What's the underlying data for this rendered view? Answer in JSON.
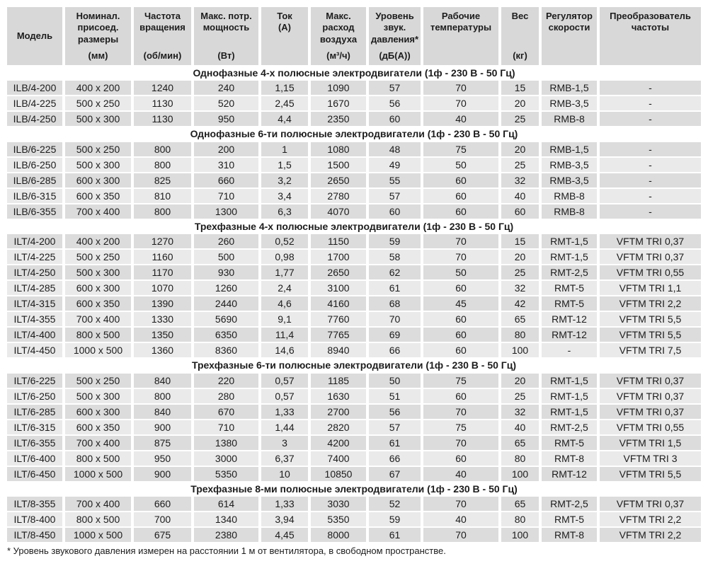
{
  "colors": {
    "header_bg": "#d8d8d8",
    "row_dark": "#dcdcdc",
    "row_light": "#eaeaea",
    "text": "#1c1c1c"
  },
  "table": {
    "columns": [
      {
        "key": "model",
        "title": "Модель",
        "unit": "",
        "layout": "center"
      },
      {
        "key": "dimensions",
        "title": "Номинал. присоед. размеры",
        "unit": "(мм)",
        "layout": "spread"
      },
      {
        "key": "rpm",
        "title": "Частота вращения",
        "unit": "(об/мин)",
        "layout": "spread"
      },
      {
        "key": "power",
        "title": "Макс. потр. мощность",
        "unit": "(Вт)",
        "layout": "spread"
      },
      {
        "key": "current",
        "title": "Ток",
        "unit": "(А)",
        "layout": "top"
      },
      {
        "key": "airflow",
        "title": "Макс. расход воздуха",
        "unit": "(м³/ч)",
        "layout": "spread"
      },
      {
        "key": "noise",
        "title": "Уровень звук. давления*",
        "unit": "(дБ(А))",
        "layout": "spread"
      },
      {
        "key": "temperature",
        "title": "Рабочие температуры",
        "unit": "",
        "layout": "top"
      },
      {
        "key": "weight",
        "title": "Вес",
        "unit": "(кг)",
        "layout": "spread"
      },
      {
        "key": "regulator",
        "title": "Регулятор скорости",
        "unit": "",
        "layout": "top"
      },
      {
        "key": "converter",
        "title": "Преобразователь частоты",
        "unit": "",
        "layout": "top"
      }
    ],
    "sections": [
      {
        "title": "Однофазные 4-х полюсные электродвигатели (1ф - 230 В - 50 Гц)",
        "rows": [
          [
            "ILB/4-200",
            "400 x 200",
            "1240",
            "240",
            "1,15",
            "1090",
            "57",
            "70",
            "15",
            "RMB-1,5",
            "-"
          ],
          [
            "ILB/4-225",
            "500 x 250",
            "1130",
            "520",
            "2,45",
            "1670",
            "56",
            "70",
            "20",
            "RMB-3,5",
            "-"
          ],
          [
            "ILB/4-250",
            "500 x 300",
            "1130",
            "950",
            "4,4",
            "2350",
            "60",
            "40",
            "25",
            "RMB-8",
            "-"
          ]
        ]
      },
      {
        "title": "Однофазные 6-ти полюсные электродвигатели (1ф - 230 В - 50 Гц)",
        "rows": [
          [
            "ILB/6-225",
            "500 x 250",
            "800",
            "200",
            "1",
            "1080",
            "48",
            "75",
            "20",
            "RMB-1,5",
            "-"
          ],
          [
            "ILB/6-250",
            "500 x 300",
            "800",
            "310",
            "1,5",
            "1500",
            "49",
            "50",
            "25",
            "RMB-3,5",
            "-"
          ],
          [
            "ILB/6-285",
            "600 x 300",
            "825",
            "660",
            "3,2",
            "2650",
            "55",
            "60",
            "32",
            "RMB-3,5",
            "-"
          ],
          [
            "ILB/6-315",
            "600 x 350",
            "810",
            "710",
            "3,4",
            "2780",
            "57",
            "60",
            "40",
            "RMB-8",
            "-"
          ],
          [
            "ILB/6-355",
            "700 x 400",
            "800",
            "1300",
            "6,3",
            "4070",
            "60",
            "60",
            "60",
            "RMB-8",
            "-"
          ]
        ]
      },
      {
        "title": "Трехфазные 4-х полюсные электродвигатели (1ф - 230 В - 50 Гц)",
        "rows": [
          [
            "ILT/4-200",
            "400 x 200",
            "1270",
            "260",
            "0,52",
            "1150",
            "59",
            "70",
            "15",
            "RMT-1,5",
            "VFTM TRI 0,37"
          ],
          [
            "ILT/4-225",
            "500 x 250",
            "1160",
            "500",
            "0,98",
            "1700",
            "58",
            "70",
            "20",
            "RMT-1,5",
            "VFTM TRI 0,37"
          ],
          [
            "ILT/4-250",
            "500 x 300",
            "1170",
            "930",
            "1,77",
            "2650",
            "62",
            "50",
            "25",
            "RMT-2,5",
            "VFTM TRI 0,55"
          ],
          [
            "ILT/4-285",
            "600 x 300",
            "1070",
            "1260",
            "2,4",
            "3100",
            "61",
            "60",
            "32",
            "RMT-5",
            "VFTM TRI 1,1"
          ],
          [
            "ILT/4-315",
            "600 x 350",
            "1390",
            "2440",
            "4,6",
            "4160",
            "68",
            "45",
            "42",
            "RMT-5",
            "VFTM TRI 2,2"
          ],
          [
            "ILT/4-355",
            "700 x 400",
            "1330",
            "5690",
            "9,1",
            "7760",
            "70",
            "60",
            "65",
            "RMT-12",
            "VFTM TRI 5,5"
          ],
          [
            "ILT/4-400",
            "800 x 500",
            "1350",
            "6350",
            "11,4",
            "7765",
            "69",
            "60",
            "80",
            "RMT-12",
            "VFTM TRI 5,5"
          ],
          [
            "ILT/4-450",
            "1000 x 500",
            "1360",
            "8360",
            "14,6",
            "8940",
            "66",
            "60",
            "100",
            "-",
            "VFTM TRI 7,5"
          ]
        ]
      },
      {
        "title": "Трехфазные 6-ти полюсные электродвигатели (1ф - 230 В - 50 Гц)",
        "rows": [
          [
            "ILT/6-225",
            "500 x 250",
            "840",
            "220",
            "0,57",
            "1185",
            "50",
            "75",
            "20",
            "RMT-1,5",
            "VFTM TRI 0,37"
          ],
          [
            "ILT/6-250",
            "500 x 300",
            "800",
            "280",
            "0,57",
            "1630",
            "51",
            "60",
            "25",
            "RMT-1,5",
            "VFTM TRI 0,37"
          ],
          [
            "ILT/6-285",
            "600 x 300",
            "840",
            "670",
            "1,33",
            "2700",
            "56",
            "70",
            "32",
            "RMT-1,5",
            "VFTM TRI 0,37"
          ],
          [
            "ILT/6-315",
            "600 x 350",
            "900",
            "710",
            "1,44",
            "2820",
            "57",
            "75",
            "40",
            "RMT-2,5",
            "VFTM TRI 0,55"
          ],
          [
            "ILT/6-355",
            "700 x 400",
            "875",
            "1380",
            "3",
            "4200",
            "61",
            "70",
            "65",
            "RMT-5",
            "VFTM TRI 1,5"
          ],
          [
            "ILT/6-400",
            "800 x 500",
            "950",
            "3000",
            "6,37",
            "7400",
            "66",
            "60",
            "80",
            "RMT-8",
            "VFTM TRI 3"
          ],
          [
            "ILT/6-450",
            "1000 x 500",
            "900",
            "5350",
            "10",
            "10850",
            "67",
            "40",
            "100",
            "RMT-12",
            "VFTM TRI 5,5"
          ]
        ]
      },
      {
        "title": "Трехфазные 8-ми полюсные электродвигатели (1ф - 230 В - 50 Гц)",
        "rows": [
          [
            "ILT/8-355",
            "700 x 400",
            "660",
            "614",
            "1,33",
            "3030",
            "52",
            "70",
            "65",
            "RMT-2,5",
            "VFTM TRI 0,37"
          ],
          [
            "ILT/8-400",
            "800 x 500",
            "700",
            "1340",
            "3,94",
            "5350",
            "59",
            "40",
            "80",
            "RMT-5",
            "VFTM TRI 2,2"
          ],
          [
            "ILT/8-450",
            "1000 x 500",
            "675",
            "2380",
            "4,45",
            "8000",
            "61",
            "70",
            "100",
            "RMT-8",
            "VFTM TRI 2,2"
          ]
        ]
      }
    ],
    "footnote": "* Уровень звукового давления измерен на расстоянии 1 м от вентилятора, в свободном пространстве."
  }
}
